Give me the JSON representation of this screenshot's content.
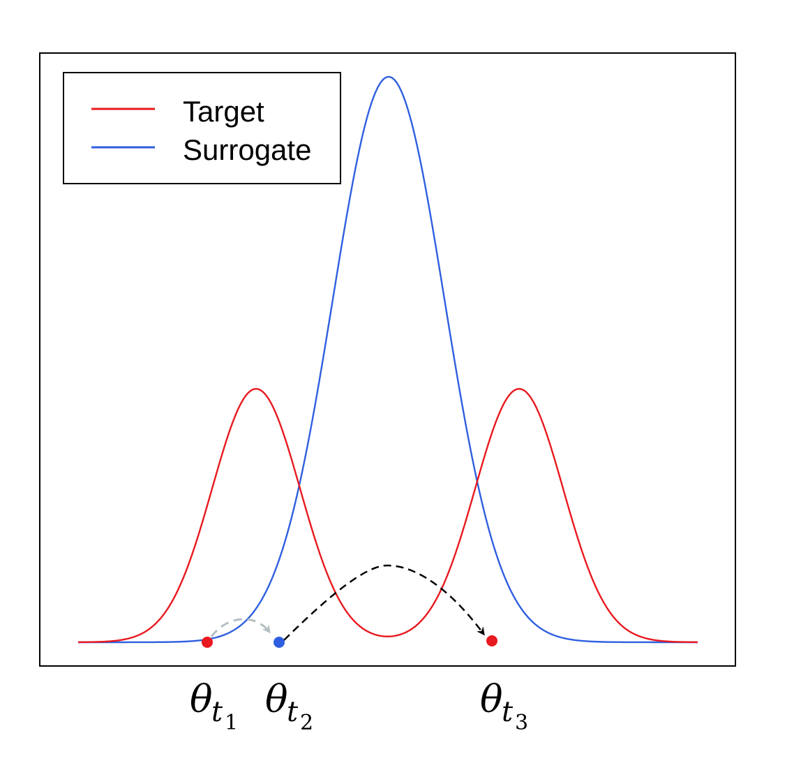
{
  "colors": {
    "target": "#e8191f",
    "surrogate": "#2f5fe0",
    "frame": "#000000",
    "arrow_primary": "#000000",
    "arrow_faded": "#b5bfc3"
  },
  "legend": {
    "entries": [
      {
        "label": "Target",
        "color": "#e8191f"
      },
      {
        "label": "Surrogate",
        "color": "#2f5fe0"
      }
    ]
  },
  "points": [
    {
      "symbol": "θ",
      "subscript": "t",
      "index": "1",
      "color": "#e8191f"
    },
    {
      "symbol": "θ",
      "subscript": "t",
      "index": "2",
      "color": "#2f5fe0"
    },
    {
      "symbol": "θ",
      "subscript": "t",
      "index": "3",
      "color": "#e8191f"
    }
  ]
}
